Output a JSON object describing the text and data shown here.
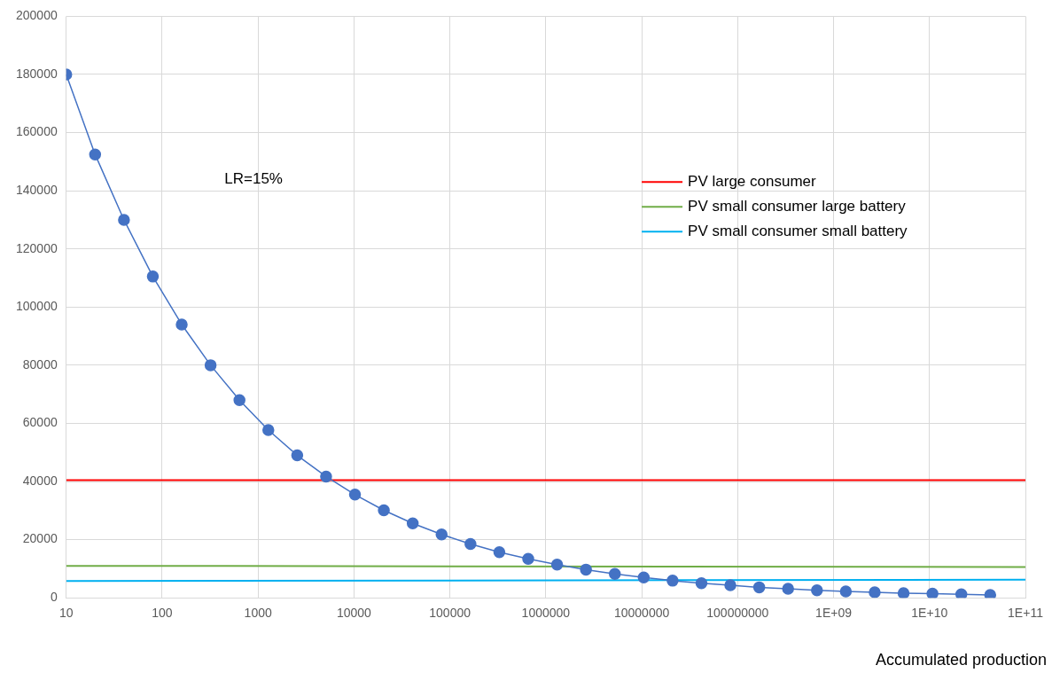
{
  "chart_data": {
    "type": "line",
    "xlabel": "Accumulated production",
    "log": "x",
    "grid": true,
    "legend": "top right",
    "marker": "circle",
    "xlim": [
      10,
      100000000000
    ],
    "xticks": [
      10,
      100,
      1000,
      10000,
      100000,
      1000000,
      10000000,
      100000000,
      {
        "value": 1000000000,
        "label": "1E+09"
      },
      {
        "value": 10000000000,
        "label": "1E+10"
      },
      {
        "value": 100000000000,
        "label": "1E+11"
      }
    ],
    "ylim": [
      0,
      200000
    ],
    "yticks": [
      0,
      20000,
      40000,
      60000,
      80000,
      100000,
      120000,
      140000,
      160000,
      180000,
      200000
    ],
    "annotations": [
      "LR=15%"
    ],
    "series": [
      {
        "color": "#4472c4",
        "x": [
          10,
          20,
          40,
          80,
          160,
          320,
          640,
          1280,
          2560,
          5120,
          10240,
          20480,
          40960,
          81920,
          163840,
          327680,
          655360,
          1310720,
          2621440,
          5242880,
          10485760,
          20971520,
          41943040,
          83886080,
          167772160,
          335544320,
          671088640,
          1342177280,
          2684354560,
          5368709120,
          10737418240,
          21474836480,
          42949672960
        ],
        "values": [
          180000,
          152500,
          130000,
          110500,
          94000,
          80000,
          68000,
          57700,
          49000,
          41700,
          35500,
          30100,
          25600,
          21800,
          18500,
          15700,
          13400,
          11400,
          9700,
          8200,
          7000,
          5900,
          5000,
          4300,
          3600,
          3100,
          2600,
          2200,
          1900,
          1600,
          1400,
          1200,
          1000
        ]
      },
      {
        "name": "PV large consumer",
        "color": "#ff0000",
        "marker": "none",
        "x": [
          10,
          100000000000
        ],
        "values": [
          40500,
          40500
        ]
      },
      {
        "name": "PV small consumer large battery",
        "color": "#70ad47",
        "marker": "none",
        "x": [
          10,
          100000000000
        ],
        "values": [
          11000,
          10600
        ]
      },
      {
        "name": "PV small consumer small battery",
        "color": "#00b0f0",
        "marker": "none",
        "x": [
          10,
          100000000000
        ],
        "values": [
          5800,
          6200
        ]
      }
    ]
  }
}
